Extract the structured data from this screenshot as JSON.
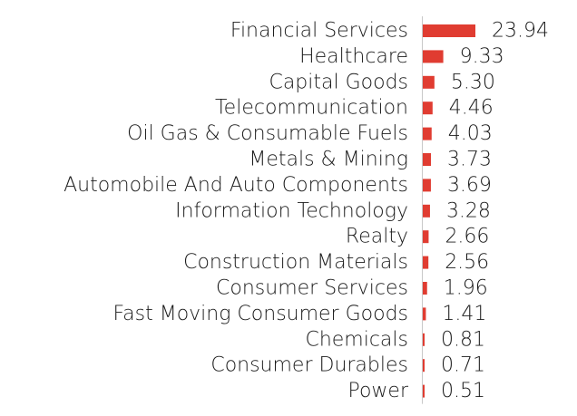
{
  "chart_data": {
    "type": "bar",
    "orientation": "horizontal",
    "title": "",
    "xlabel": "",
    "ylabel": "",
    "grid": false,
    "bar_color": "#e03c31",
    "axis_color": "#c8c8c8",
    "categories": [
      "Financial Services",
      "Healthcare",
      "Capital Goods",
      "Telecommunication",
      "Oil Gas & Consumable Fuels",
      "Metals & Mining",
      "Automobile And Auto Components",
      "Information Technology",
      "Realty",
      "Construction Materials",
      "Consumer Services",
      "Fast Moving Consumer Goods",
      "Chemicals",
      "Consumer Durables",
      "Power"
    ],
    "values": [
      23.94,
      9.33,
      5.3,
      4.46,
      4.03,
      3.73,
      3.69,
      3.28,
      2.66,
      2.56,
      1.96,
      1.41,
      0.81,
      0.71,
      0.51
    ],
    "value_labels": [
      "23.94",
      "9.33",
      "5.30",
      "4.46",
      "4.03",
      "3.73",
      "3.69",
      "3.28",
      "2.66",
      "2.56",
      "1.96",
      "1.41",
      "0.81",
      "0.71",
      "0.51"
    ]
  }
}
